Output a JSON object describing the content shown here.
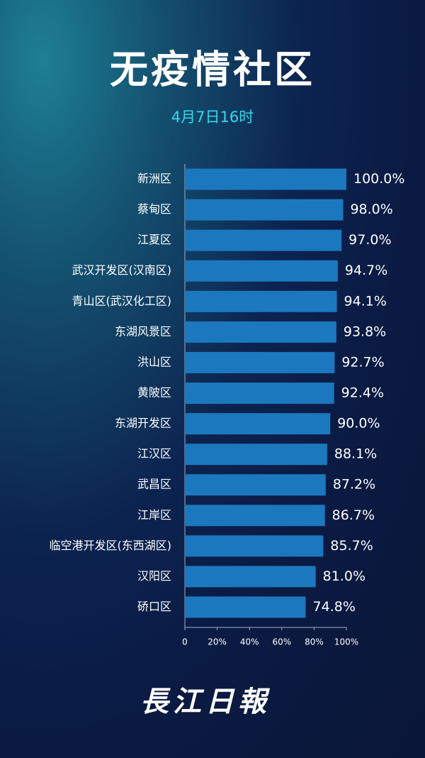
{
  "chart_data": {
    "type": "bar",
    "orientation": "horizontal",
    "title": "无疫情社区",
    "subtitle": "4月7日16时",
    "categories": [
      "新洲区",
      "蔡甸区",
      "江夏区",
      "武汉开发区(汉南区)",
      "青山区(武汉化工区)",
      "东湖风景区",
      "洪山区",
      "黄陂区",
      "东湖开发区",
      "江汉区",
      "武昌区",
      "江岸区",
      "临空港开发区(东西湖区)",
      "汉阳区",
      "硚口区"
    ],
    "values": [
      100.0,
      98.0,
      97.0,
      94.7,
      94.1,
      93.8,
      92.7,
      92.4,
      90.0,
      88.1,
      87.2,
      86.7,
      85.7,
      81.0,
      74.8
    ],
    "value_labels": [
      "100.0%",
      "98.0%",
      "97.0%",
      "94.7%",
      "94.1%",
      "93.8%",
      "92.7%",
      "92.4%",
      "90.0%",
      "88.1%",
      "87.2%",
      "86.7%",
      "85.7%",
      "81.0%",
      "74.8%"
    ],
    "color": "#1b78bf",
    "xlim": [
      0,
      100
    ],
    "xticks": [
      0,
      {
        "value": 20,
        "label": "20%"
      },
      {
        "value": 40,
        "label": "40%"
      },
      {
        "value": 60,
        "label": "60%"
      },
      {
        "value": 80,
        "label": "80%"
      },
      {
        "value": 100,
        "label": "100%"
      }
    ],
    "source": "長江日報"
  }
}
